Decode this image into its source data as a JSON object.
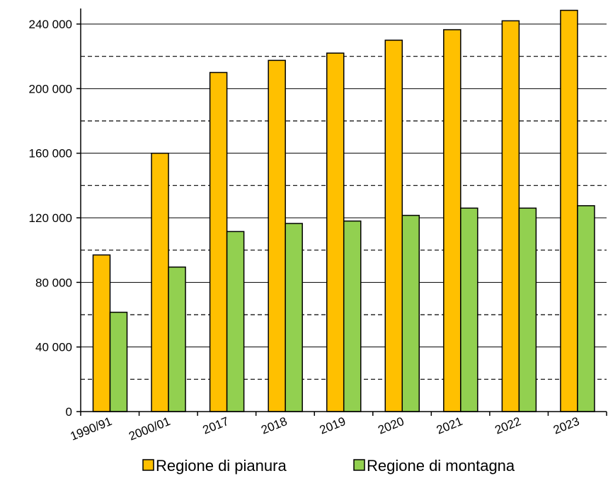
{
  "chart_data": {
    "type": "bar",
    "title": "",
    "xlabel": "",
    "ylabel": "",
    "categories": [
      "1990/91",
      "2000/01",
      "2017",
      "2018",
      "2019",
      "2020",
      "2021",
      "2022",
      "2023"
    ],
    "series": [
      {
        "name": "Regione di pianura",
        "color": "#FFC000",
        "values": [
          97000,
          160000,
          210000,
          217500,
          222000,
          230000,
          236500,
          242000,
          248500
        ]
      },
      {
        "name": "Regione di montagna",
        "color": "#92D050",
        "values": [
          61500,
          89500,
          111500,
          116500,
          118000,
          121500,
          126000,
          126000,
          127500
        ]
      }
    ],
    "ylim": [
      0,
      240000
    ],
    "yticks": [
      0,
      40000,
      80000,
      120000,
      160000,
      200000,
      240000
    ],
    "ytick_labels": [
      "0",
      "40 000",
      "80 000",
      "120 000",
      "160 000",
      "200 000",
      "240 000"
    ],
    "grid": {
      "major": "solid",
      "minor": "dashed"
    },
    "legend_position": "bottom"
  }
}
